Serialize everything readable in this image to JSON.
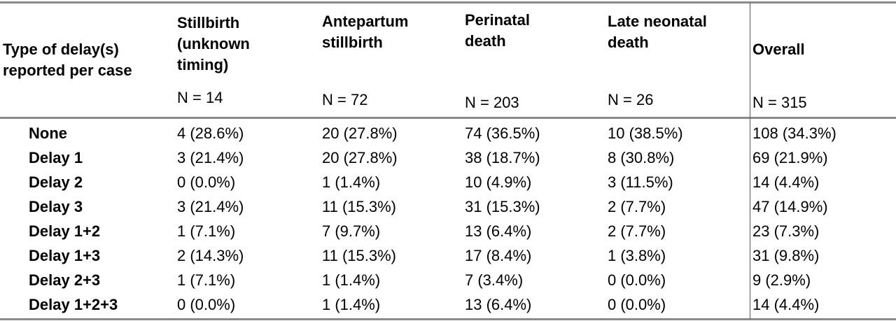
{
  "header": {
    "row_label": "Type of delay(s)\nreported per case",
    "columns": [
      {
        "label": "Stillbirth\n(unknown\ntiming)",
        "n": "N = 14"
      },
      {
        "label": "Antepartum\nstillbirth",
        "n": "N = 72"
      },
      {
        "label": "Perinatal\ndeath",
        "n": "N = 203"
      },
      {
        "label": "Late neonatal\ndeath",
        "n": "N = 26"
      },
      {
        "label": "Overall",
        "n": "N = 315"
      }
    ]
  },
  "rows": [
    {
      "label": "None",
      "cells": [
        "4 (28.6%)",
        "20 (27.8%)",
        "74 (36.5%)",
        "10 (38.5%)",
        "108 (34.3%)"
      ]
    },
    {
      "label": "Delay 1",
      "cells": [
        "3 (21.4%)",
        "20 (27.8%)",
        "38 (18.7%)",
        "8 (30.8%)",
        "69 (21.9%)"
      ]
    },
    {
      "label": "Delay 2",
      "cells": [
        "0 (0.0%)",
        "1 (1.4%)",
        "10 (4.9%)",
        "3 (11.5%)",
        "14 (4.4%)"
      ]
    },
    {
      "label": "Delay 3",
      "cells": [
        "3 (21.4%)",
        "11 (15.3%)",
        "31 (15.3%)",
        "2 (7.7%)",
        "47 (14.9%)"
      ]
    },
    {
      "label": "Delay 1+2",
      "cells": [
        "1 (7.1%)",
        "7 (9.7%)",
        "13 (6.4%)",
        "2 (7.7%)",
        "23 (7.3%)"
      ]
    },
    {
      "label": "Delay 1+3",
      "cells": [
        "2 (14.3%)",
        "11 (15.3%)",
        "17 (8.4%)",
        "1 (3.8%)",
        "31 (9.8%)"
      ]
    },
    {
      "label": "Delay 2+3",
      "cells": [
        "1 (7.1%)",
        "1 (1.4%)",
        "7 (3.4%)",
        "0 (0.0%)",
        "9 (2.9%)"
      ]
    },
    {
      "label": "Delay 1+2+3",
      "cells": [
        "0 (0.0%)",
        "1 (1.4%)",
        "13 (6.4%)",
        "0 (0.0%)",
        "14 (4.4%)"
      ]
    }
  ]
}
